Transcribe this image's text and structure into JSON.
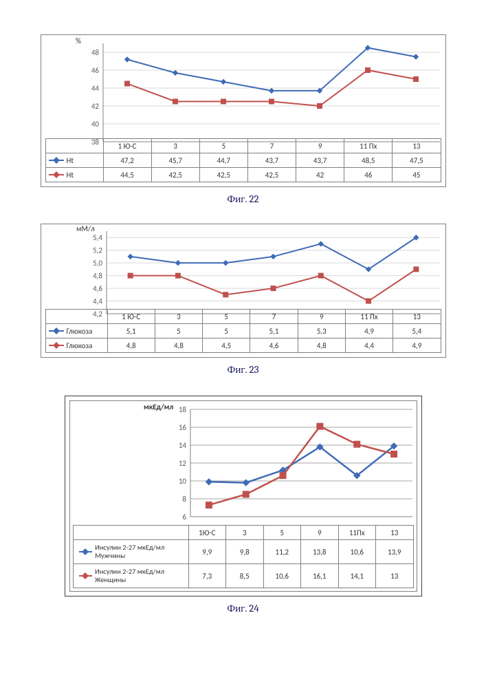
{
  "captions": {
    "f22": "Фиг. 22",
    "f23": "Фиг. 23",
    "f24": "Фиг. 24"
  },
  "fig22": {
    "type": "line-with-table",
    "y_label": "%",
    "series_blue": {
      "label": "Ht",
      "color": "#3e6bb5",
      "marker_fill": "#3e6bb5"
    },
    "series_red": {
      "label": "Ht",
      "color": "#c0504d",
      "marker_fill": "#c0504d"
    },
    "categories": [
      "1 Ю-С",
      "3",
      "5",
      "7",
      "9",
      "11 Пх",
      "13"
    ],
    "blue_vals": [
      "47,2",
      "45,7",
      "44,7",
      "43,7",
      "43,7",
      "48,5",
      "47,5"
    ],
    "red_vals": [
      "44,5",
      "42,5",
      "42,5",
      "42,5",
      "42",
      "46",
      "45"
    ],
    "blue_num": [
      47.2,
      45.7,
      44.7,
      43.7,
      43.7,
      48.5,
      47.5
    ],
    "red_num": [
      44.5,
      42.5,
      42.5,
      42.5,
      42.0,
      46.0,
      45.0
    ],
    "ylim": [
      38,
      49
    ],
    "ytick_step": 2,
    "grid_color": "#d9d9d9",
    "axis_color": "#808080",
    "background": "#ffffff"
  },
  "fig23": {
    "type": "line-with-table",
    "y_label": "мМ/л",
    "series_blue": {
      "label": "Глюкоза",
      "color": "#3e6bb5"
    },
    "series_red": {
      "label": "Глюкоза",
      "color": "#c0504d"
    },
    "categories": [
      "1 Ю-С",
      "3",
      "5",
      "7",
      "9",
      "11 Пх",
      "13"
    ],
    "blue_vals": [
      "5,1",
      "5",
      "5",
      "5,1",
      "5,3",
      "4,9",
      "5,4"
    ],
    "red_vals": [
      "4,8",
      "4,8",
      "4,5",
      "4,6",
      "4,8",
      "4,4",
      "4,9"
    ],
    "blue_num": [
      5.1,
      5.0,
      5.0,
      5.1,
      5.3,
      4.9,
      5.4
    ],
    "red_num": [
      4.8,
      4.8,
      4.5,
      4.6,
      4.8,
      4.4,
      4.9
    ],
    "ylim": [
      4.2,
      5.5
    ],
    "ytick_step": 0.2,
    "grid_color": "#d9d9d9",
    "axis_color": "#808080",
    "background": "#ffffff"
  },
  "fig24": {
    "type": "line-with-table",
    "y_label": "мкЕд/мл",
    "series_blue": {
      "label": "Инсулин 2-27 мкЕд/мл Мужчины",
      "color": "#3e6bb5",
      "marker": "diamond"
    },
    "series_red": {
      "label": "Инсулин 2-27 мкЕд/мл Женщины",
      "color": "#c0504d",
      "marker": "square"
    },
    "categories": [
      "1Ю-С",
      "3",
      "5",
      "9",
      "11Пх",
      "13"
    ],
    "blue_vals": [
      "9,9",
      "9,8",
      "11,2",
      "13,8",
      "10,6",
      "13,9"
    ],
    "red_vals": [
      "7,3",
      "8,5",
      "10,6",
      "16,1",
      "14,1",
      "13"
    ],
    "blue_num": [
      9.9,
      9.8,
      11.2,
      13.8,
      10.6,
      13.9
    ],
    "red_num": [
      7.3,
      8.5,
      10.6,
      16.1,
      14.1,
      13.0
    ],
    "ylim": [
      6,
      18
    ],
    "ytick_step": 2,
    "grid_color": "#a6a6a6",
    "axis_color": "#808080",
    "background": "#ffffff",
    "marker_size": 8,
    "line_width": 2
  }
}
